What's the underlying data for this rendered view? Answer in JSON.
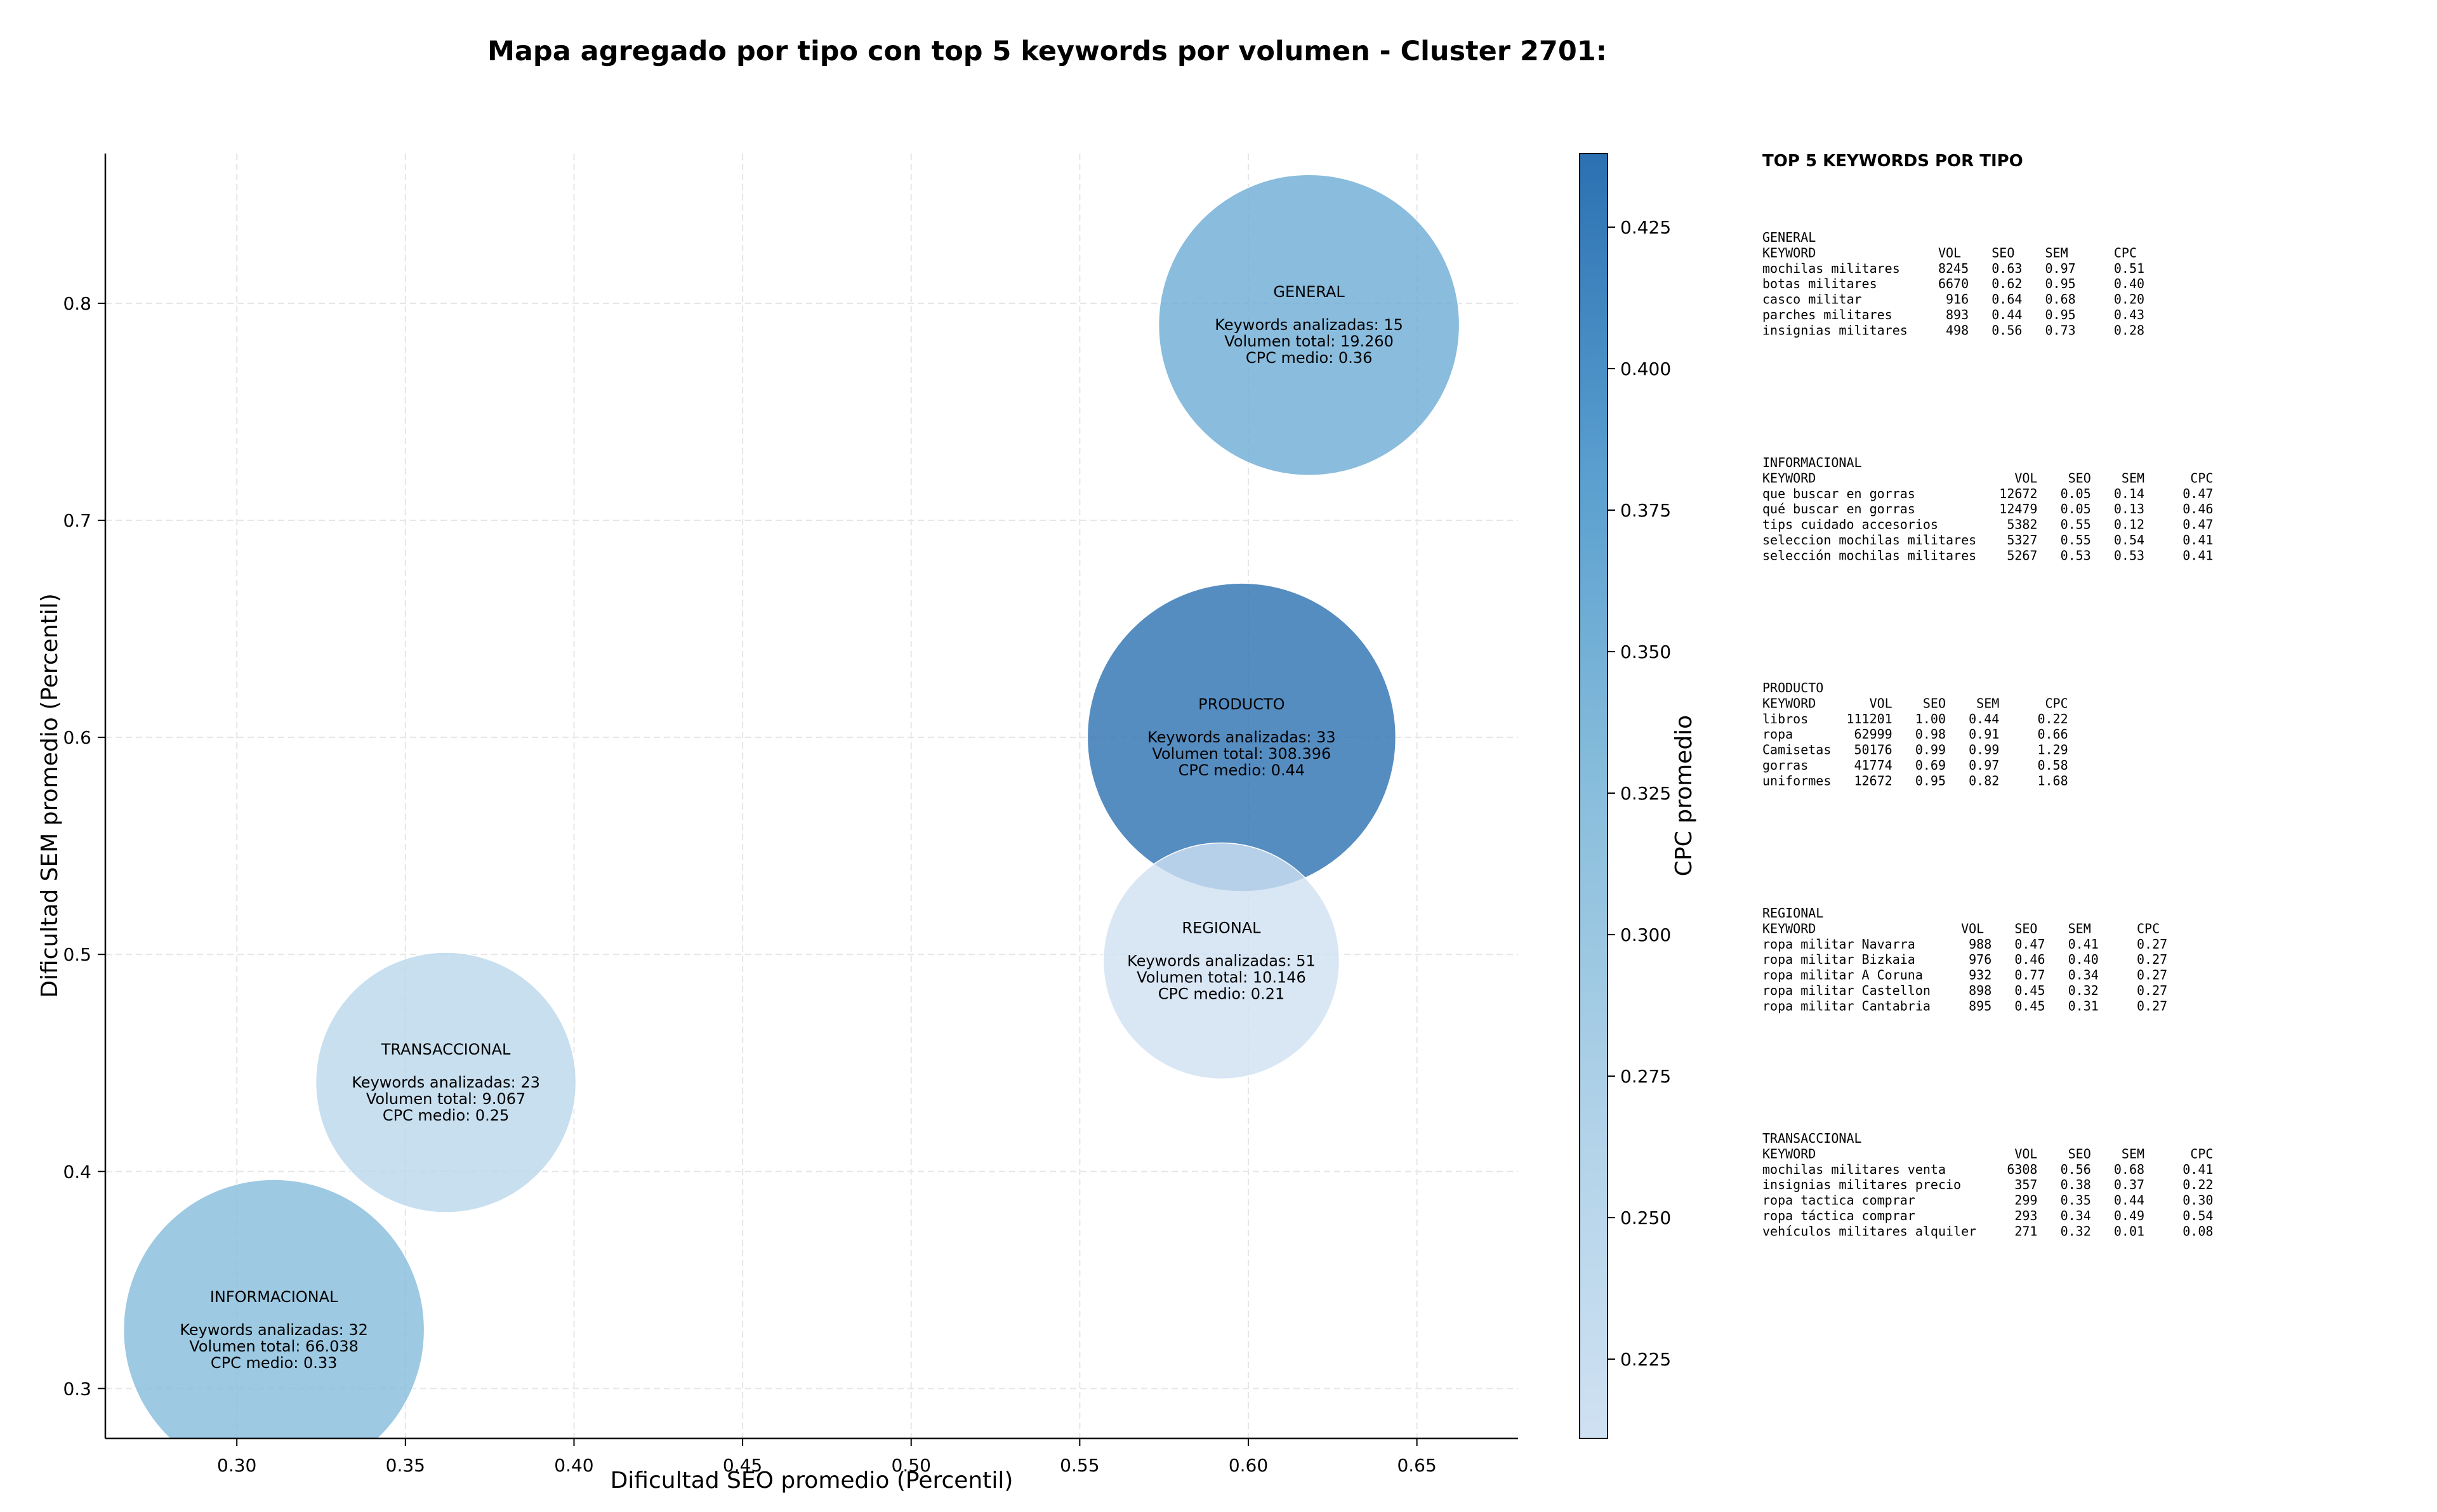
{
  "chart_data": {
    "type": "scatter",
    "title": "Mapa agregado por tipo con top 5 keywords por volumen - Cluster 2701:",
    "xlabel": "Dificultad SEO promedio (Percentil)",
    "ylabel": "Dificultad SEM promedio (Percentil)",
    "xlim": [
      0.261,
      0.68
    ],
    "ylim": [
      0.277,
      0.869
    ],
    "xticks": [
      "0.30",
      "0.35",
      "0.40",
      "0.45",
      "0.50",
      "0.55",
      "0.60",
      "0.65"
    ],
    "yticks": [
      "0.3",
      "0.4",
      "0.5",
      "0.6",
      "0.7",
      "0.8"
    ],
    "grid": true,
    "colorbar": {
      "label": "CPC promedio",
      "min": 0.211,
      "max": 0.438,
      "ticks": [
        "0.225",
        "0.250",
        "0.275",
        "0.300",
        "0.325",
        "0.350",
        "0.375",
        "0.400",
        "0.425"
      ]
    },
    "points": [
      {
        "name": "GENERAL",
        "x": 0.618,
        "y": 0.79,
        "keywords": 15,
        "volume": 19260,
        "cpc": 0.36,
        "lines": [
          "Keywords analizadas: 15",
          "Volumen total: 19.260",
          "CPC medio: 0.36"
        ]
      },
      {
        "name": "PRODUCTO",
        "x": 0.598,
        "y": 0.6,
        "keywords": 33,
        "volume": 308396,
        "cpc": 0.44,
        "lines": [
          "Keywords analizadas: 33",
          "Volumen total: 308.396",
          "CPC medio: 0.44"
        ]
      },
      {
        "name": "REGIONAL",
        "x": 0.592,
        "y": 0.497,
        "keywords": 51,
        "volume": 10146,
        "cpc": 0.21,
        "lines": [
          "Keywords analizadas: 51",
          "Volumen total: 10.146",
          "CPC medio: 0.21"
        ]
      },
      {
        "name": "TRANSACCIONAL",
        "x": 0.362,
        "y": 0.441,
        "keywords": 23,
        "volume": 9067,
        "cpc": 0.25,
        "lines": [
          "Keywords analizadas: 23",
          "Volumen total: 9.067",
          "CPC medio: 0.25"
        ]
      },
      {
        "name": "INFORMACIONAL",
        "x": 0.311,
        "y": 0.327,
        "keywords": 32,
        "volume": 66038,
        "cpc": 0.33,
        "lines": [
          "Keywords analizadas: 32",
          "Volumen total: 66.038",
          "CPC medio: 0.33"
        ]
      }
    ],
    "side_panel": {
      "heading": "TOP 5 KEYWORDS POR TIPO",
      "blocks": [
        {
          "lines": [
            "GENERAL",
            "KEYWORD                VOL    SEO    SEM      CPC",
            "mochilas militares     8245   0.63   0.97     0.51",
            "botas militares        6670   0.62   0.95     0.40",
            "casco militar           916   0.64   0.68     0.20",
            "parches militares       893   0.44   0.95     0.43",
            "insignias militares     498   0.56   0.73     0.28"
          ]
        },
        {
          "lines": [
            "INFORMACIONAL",
            "KEYWORD                          VOL    SEO    SEM      CPC",
            "que buscar en gorras           12672   0.05   0.14     0.47",
            "qué buscar en gorras           12479   0.05   0.13     0.46",
            "tips cuidado accesorios         5382   0.55   0.12     0.47",
            "seleccion mochilas militares    5327   0.55   0.54     0.41",
            "selección mochilas militares    5267   0.53   0.53     0.41"
          ]
        },
        {
          "lines": [
            "PRODUCTO",
            "KEYWORD       VOL    SEO    SEM      CPC",
            "libros     111201   1.00   0.44     0.22",
            "ropa        62999   0.98   0.91     0.66",
            "Camisetas   50176   0.99   0.99     1.29",
            "gorras      41774   0.69   0.97     0.58",
            "uniformes   12672   0.95   0.82     1.68"
          ]
        },
        {
          "lines": [
            "REGIONAL",
            "KEYWORD                   VOL    SEO    SEM      CPC",
            "ropa militar Navarra       988   0.47   0.41     0.27",
            "ropa militar Bizkaia       976   0.46   0.40     0.27",
            "ropa militar A Coruna      932   0.77   0.34     0.27",
            "ropa militar Castellon     898   0.45   0.32     0.27",
            "ropa militar Cantabria     895   0.45   0.31     0.27"
          ]
        },
        {
          "lines": [
            "TRANSACCIONAL",
            "KEYWORD                          VOL    SEO    SEM      CPC",
            "mochilas militares venta        6308   0.56   0.68     0.41",
            "insignias militares precio       357   0.38   0.37     0.22",
            "ropa tactica comprar             299   0.35   0.44     0.30",
            "ropa táctica comprar             293   0.34   0.49     0.54",
            "vehículos militares alquiler     271   0.32   0.01     0.08"
          ]
        }
      ]
    }
  }
}
